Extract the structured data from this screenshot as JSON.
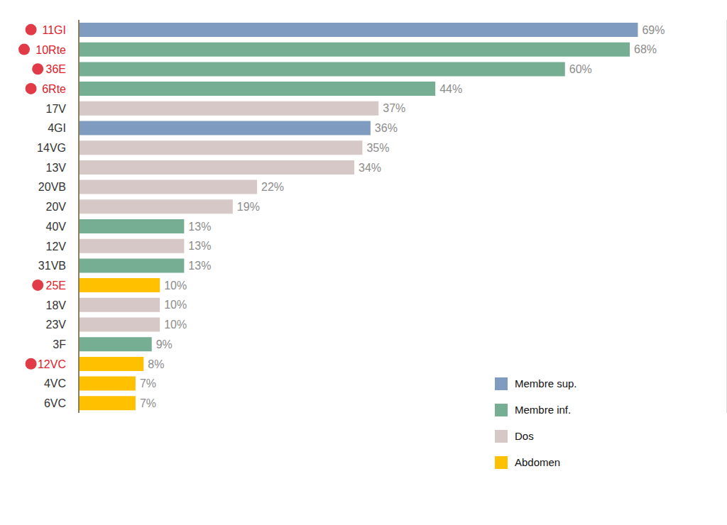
{
  "chart_data": {
    "type": "bar",
    "orientation": "horizontal",
    "categories": [
      "11GI",
      "10Rte",
      "36E",
      "6Rte",
      "17V",
      "4GI",
      "14VG",
      "13V",
      "20VB",
      "20V",
      "40V",
      "12V",
      "31VB",
      "25E",
      "18V",
      "23V",
      "3F",
      "12VC",
      "4VC",
      "6VC"
    ],
    "series": [
      {
        "name": "Membre sup.",
        "color": "#7f9bbf",
        "values": [
          69,
          null,
          null,
          null,
          null,
          36,
          null,
          null,
          null,
          null,
          null,
          null,
          null,
          null,
          null,
          null,
          null,
          null,
          null,
          null
        ],
        "value_labels": [
          "69%",
          null,
          null,
          null,
          null,
          "36%",
          null,
          null,
          null,
          null,
          null,
          null,
          null,
          null,
          null,
          null,
          null,
          null,
          null,
          null
        ]
      },
      {
        "name": "Membre inf.",
        "color": "#76ae94",
        "values": [
          null,
          68,
          60,
          44,
          null,
          null,
          null,
          null,
          null,
          null,
          13,
          null,
          13,
          null,
          null,
          null,
          9,
          null,
          null,
          null
        ],
        "value_labels": [
          null,
          "68%",
          "60%",
          "44%",
          null,
          null,
          null,
          null,
          null,
          null,
          "13%",
          null,
          "13%",
          null,
          null,
          null,
          "9%",
          null,
          null,
          null
        ]
      },
      {
        "name": "Dos",
        "color": "#d5c8c6",
        "values": [
          null,
          null,
          null,
          null,
          37,
          null,
          35,
          34,
          22,
          19,
          null,
          13,
          null,
          null,
          10,
          10,
          null,
          null,
          null,
          null
        ],
        "value_labels": [
          null,
          null,
          null,
          null,
          "37%",
          null,
          "35%",
          "34%",
          "22%",
          "19%",
          null,
          "13%",
          null,
          null,
          "10%",
          "10%",
          null,
          null,
          null,
          null
        ]
      },
      {
        "name": "Abdomen",
        "color": "#ffc000",
        "values": [
          null,
          null,
          null,
          null,
          null,
          null,
          null,
          null,
          null,
          null,
          null,
          null,
          null,
          10,
          null,
          null,
          null,
          8,
          7,
          7
        ],
        "value_labels": [
          null,
          null,
          null,
          null,
          null,
          null,
          null,
          null,
          null,
          null,
          null,
          null,
          null,
          "10%",
          null,
          null,
          null,
          "8%",
          "7%",
          "7%"
        ]
      }
    ],
    "xlim": [
      0,
      80
    ],
    "xticks": [
      0,
      10,
      20,
      30,
      40,
      50,
      60,
      70,
      80
    ],
    "grid": true,
    "data_labels": true,
    "tick_labels": "y",
    "legend": "lower right"
  }
}
